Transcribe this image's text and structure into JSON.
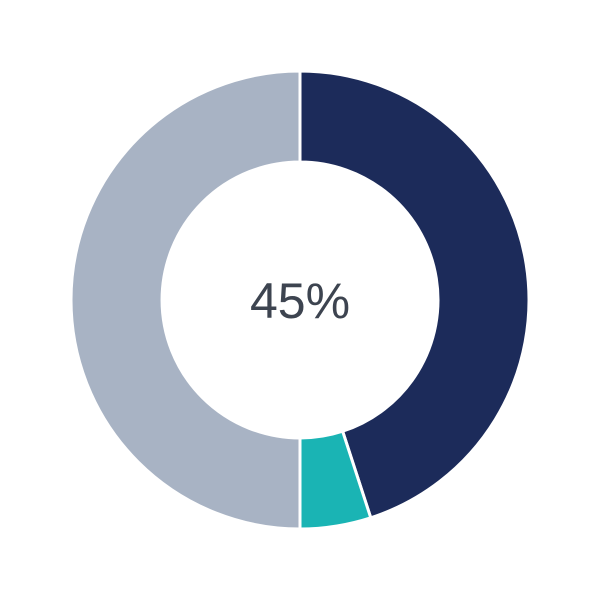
{
  "chart_data": {
    "type": "pie",
    "variant": "donut",
    "center_label": "45%",
    "slices": [
      {
        "value": 45,
        "color": "#1c2b5a"
      },
      {
        "value": 5,
        "color": "#1ab4b4"
      },
      {
        "value": 50,
        "color": "#a8b3c4"
      }
    ],
    "start": "top",
    "direction": "clockwise"
  }
}
